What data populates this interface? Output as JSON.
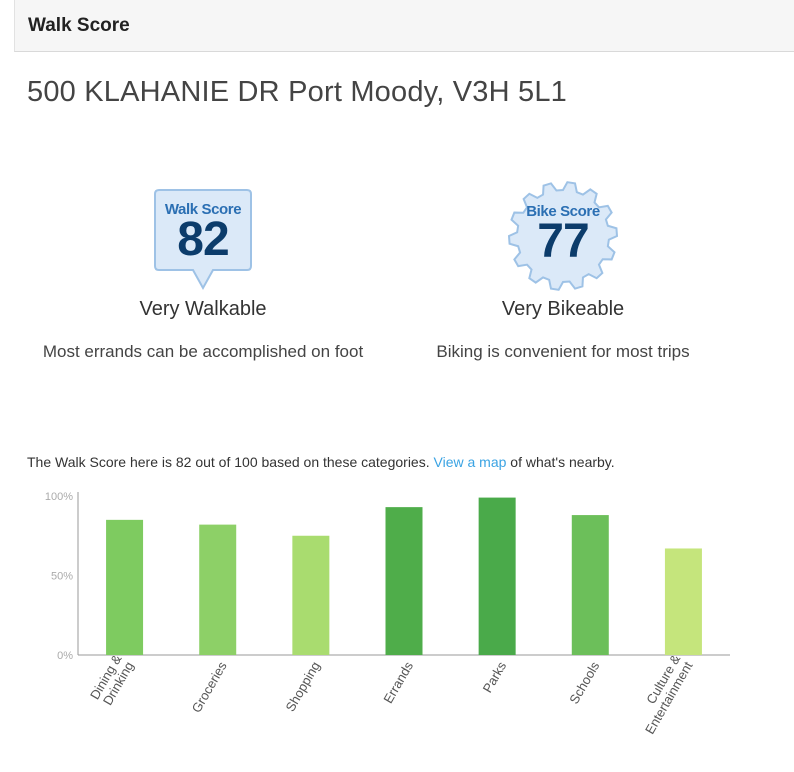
{
  "header": {
    "title": "Walk Score"
  },
  "address": "500 KLAHANIE DR Port Moody, V3H 5L1",
  "walk": {
    "badge_label": "Walk Score",
    "score": "82",
    "description": "Very Walkable",
    "subtext": "Most errands can be accomplished on foot"
  },
  "bike": {
    "badge_label": "Bike Score",
    "score": "77",
    "description": "Very Bikeable",
    "subtext": "Biking is convenient for most trips"
  },
  "summary": {
    "before": "The Walk Score here is 82 out of 100 based on these categories. ",
    "link": "View a map",
    "after": " of what's nearby."
  },
  "colors": {
    "badge_fill": "#dbe9f8",
    "badge_stroke": "#9ec2e6",
    "link": "#3aa3e3"
  },
  "chart_data": {
    "type": "bar",
    "categories": [
      "Dining & Drinking",
      "Groceries",
      "Shopping",
      "Errands",
      "Parks",
      "Schools",
      "Culture & Entertainment"
    ],
    "category_lines": [
      [
        "Dining &",
        "Drinking"
      ],
      [
        "Groceries"
      ],
      [
        "Shopping"
      ],
      [
        "Errands"
      ],
      [
        "Parks"
      ],
      [
        "Schools"
      ],
      [
        "Culture &",
        "Entertainment"
      ]
    ],
    "values": [
      85,
      82,
      75,
      93,
      99,
      88,
      67
    ],
    "colors": [
      "#7ecb60",
      "#8dd067",
      "#a9dc6f",
      "#4fad4a",
      "#4aaa4a",
      "#6cbf5a",
      "#c5e57c"
    ],
    "yticks": [
      "0%",
      "50%",
      "100%"
    ],
    "ylim": [
      0,
      100
    ],
    "grid": false
  }
}
